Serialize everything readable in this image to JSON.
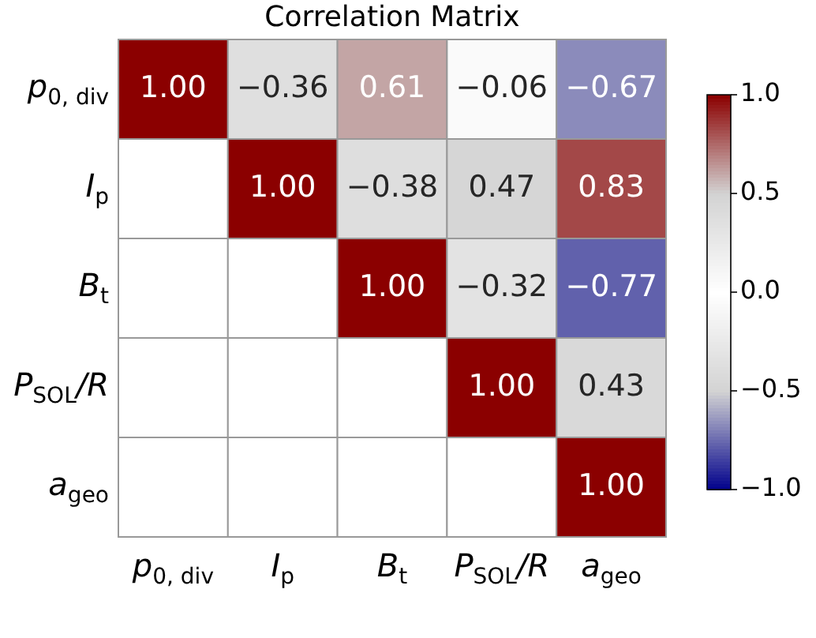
{
  "chart_data": {
    "type": "heatmap",
    "title": "Correlation Matrix",
    "categories": [
      "p$_{0, div}$",
      "I$_{p}$",
      "B$_{t}$",
      "P$_{SOL}$/R",
      "a$_{geo}$"
    ],
    "y_categories": [
      "p$_{0, div}$",
      "I$_{p}$",
      "B$_{t}$",
      "P$_{SOL}$/R",
      "a$_{geo}$"
    ],
    "cells": [
      [
        1.0,
        -0.36,
        0.61,
        -0.06,
        -0.67
      ],
      [
        null,
        1.0,
        -0.38,
        0.47,
        0.83
      ],
      [
        null,
        null,
        1.0,
        -0.32,
        -0.77
      ],
      [
        null,
        null,
        null,
        1.0,
        0.43
      ],
      [
        null,
        null,
        null,
        null,
        1.0
      ]
    ],
    "cell_labels": [
      [
        "1.00",
        "−0.36",
        "0.61",
        "−0.06",
        "−0.67"
      ],
      [
        null,
        "1.00",
        "−0.38",
        "0.47",
        "0.83"
      ],
      [
        null,
        null,
        "1.00",
        "−0.32",
        "−0.77"
      ],
      [
        null,
        null,
        null,
        "1.00",
        "0.43"
      ],
      [
        null,
        null,
        null,
        null,
        "1.00"
      ]
    ],
    "clim": [
      -1.0,
      1.0
    ],
    "cticks": [
      {
        "value": 1.0,
        "label": "1.0"
      },
      {
        "value": 0.5,
        "label": "0.5"
      },
      {
        "value": 0.0,
        "label": "0.0"
      },
      {
        "value": -0.5,
        "label": "−0.5"
      },
      {
        "value": -1.0,
        "label": "−1.0"
      }
    ]
  }
}
